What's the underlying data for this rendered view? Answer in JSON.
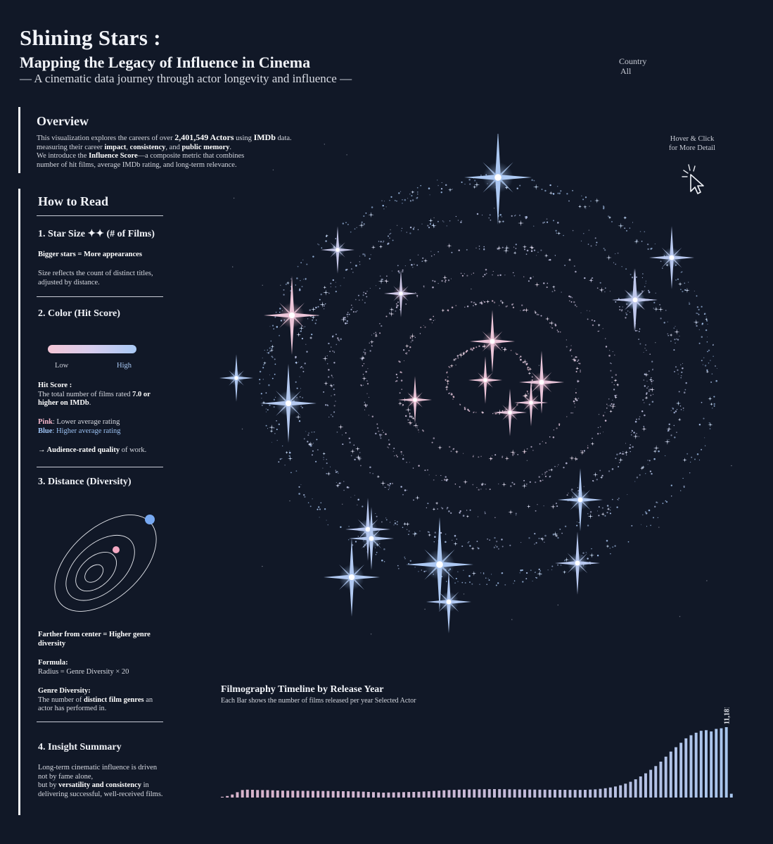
{
  "header": {
    "title": "Shining Stars :",
    "subtitle": "Mapping the Legacy of Influence in Cinema",
    "tagline": "— A cinematic data journey through actor longevity and influence —"
  },
  "filter": {
    "label": "Country",
    "value": "All"
  },
  "overview": {
    "heading": "Overview",
    "p1_a": "This visualization explores the careers of over ",
    "p1_count": "2,401,549 Actors",
    "p1_b": " using ",
    "p1_src": "IMDb",
    "p1_c": " data.",
    "p2_a": "measuring their career ",
    "p2_impact": "impact",
    "p2_b": ", ",
    "p2_consistency": "consistency",
    "p2_c": ", and ",
    "p2_memory": "public memory",
    "p2_d": ".",
    "p3_a": "We introduce the ",
    "p3_score": "Influence Score",
    "p3_b": "—a composite metric that combines",
    "p4": "number of hit films, average IMDb rating, and long-term relevance."
  },
  "howto": {
    "heading": "How to Read",
    "s1_title": "1. Star Size ✦✦ (# of Films)",
    "s1_bold": "Bigger stars = More appearances",
    "s1_text": "Size reflects the count of distinct titles, adjusted by distance.",
    "s2_title": "2. Color (Hit Score)",
    "low": "Low",
    "high": "High",
    "hit_head": "Hit Score :",
    "hit_a": "The total number of films rated ",
    "hit_b": "7.0 or higher on IMDb",
    "hit_c": ".",
    "pink_label": "Pink",
    "pink_text": ": Lower average rating",
    "blue_label": "Blue",
    "blue_text": ": Higher average rating",
    "quality_a": "→ Audience-rated quality",
    "quality_b": " of work.",
    "s3_title": "3. Distance (Diversity)",
    "dist_text": "Farther from center = Higher genre diversity",
    "formula_head": "Formula:",
    "formula": "Radius = Genre Diversity × 20",
    "gd_head": "Genre Diversity:",
    "gd_a": "The number of ",
    "gd_b": "distinct film genres",
    "gd_c": " an actor has performed in.",
    "s4_title": "4. Insight Summary",
    "ins_a": "Long-term cinematic influence is driven not by fame alone,",
    "ins_b": "but by ",
    "ins_c": "versatility and consistency",
    "ins_d": " in delivering successful, well-received films."
  },
  "hint": {
    "line1": "Hover & Click",
    "line2": "for More Detail"
  },
  "colors": {
    "background": "#111827",
    "pink": "#f4b6c9",
    "blue": "#9cc2f3",
    "lavender": "#d3cdee"
  },
  "chart_data": [
    {
      "type": "scatter",
      "title": "",
      "encoding": "polar spiral: radius = genre diversity × 20, star size = # of films, color = hit score (pink low → blue high)",
      "color_scale": {
        "low": "#f5c6d6",
        "high": "#a9c9f5"
      },
      "highlighted_stars": [
        {
          "radius_rank": 1,
          "size": 3,
          "hit": 0.1
        },
        {
          "radius_rank": 1,
          "size": 3,
          "hit": 0.15
        },
        {
          "radius_rank": 1,
          "size": 2,
          "hit": 0.1
        },
        {
          "radius_rank": 1,
          "size": 2,
          "hit": 0.15
        },
        {
          "radius_rank": 1,
          "size": 2,
          "hit": 0.2
        },
        {
          "radius_rank": 3,
          "size": 2,
          "hit": 0.1
        },
        {
          "radius_rank": 4,
          "size": 2,
          "hit": 0.5
        },
        {
          "radius_rank": 5,
          "size": 2,
          "hit": 0.6
        },
        {
          "radius_rank": 5,
          "size": 4,
          "hit": 0.1
        },
        {
          "radius_rank": 5,
          "size": 4,
          "hit": 0.85
        },
        {
          "radius_rank": 5,
          "size": 3,
          "hit": 0.7
        },
        {
          "radius_rank": 6,
          "size": 5,
          "hit": 0.95
        },
        {
          "radius_rank": 6,
          "size": 3,
          "hit": 0.8
        },
        {
          "radius_rank": 6,
          "size": 3,
          "hit": 0.7
        },
        {
          "radius_rank": 6,
          "size": 3,
          "hit": 0.9
        },
        {
          "radius_rank": 6,
          "size": 3,
          "hit": 0.8
        },
        {
          "radius_rank": 6,
          "size": 5,
          "hit": 0.95
        },
        {
          "radius_rank": 6,
          "size": 4,
          "hit": 0.9
        },
        {
          "radius_rank": 6,
          "size": 3,
          "hit": 0.85
        },
        {
          "radius_rank": 6,
          "size": 3,
          "hit": 0.9
        },
        {
          "radius_rank": 6,
          "size": 2,
          "hit": 0.9
        },
        {
          "radius_rank": 6,
          "size": 3,
          "hit": 0.8
        }
      ]
    },
    {
      "type": "bar",
      "title": "Filmography Timeline by Release Year",
      "subtitle": "Each Bar shows the number of films released per year Selected Actor",
      "max_label": "11,181",
      "values": [
        120,
        250,
        480,
        850,
        1200,
        1250,
        1230,
        1200,
        1190,
        1180,
        1150,
        1120,
        1100,
        1090,
        1080,
        1070,
        1060,
        1060,
        1050,
        1050,
        1040,
        1040,
        1030,
        1020,
        1010,
        1000,
        980,
        960,
        940,
        900,
        860,
        820,
        780,
        800,
        820,
        840,
        860,
        880,
        900,
        920,
        960,
        1000,
        1050,
        1100,
        1150,
        1200,
        1220,
        1250,
        1270,
        1290,
        1300,
        1310,
        1320,
        1330,
        1340,
        1330,
        1320,
        1310,
        1300,
        1290,
        1280,
        1270,
        1260,
        1250,
        1250,
        1240,
        1240,
        1230,
        1230,
        1220,
        1220,
        1220,
        1230,
        1260,
        1300,
        1380,
        1480,
        1600,
        1750,
        1950,
        2200,
        2500,
        2900,
        3350,
        3850,
        4400,
        5000,
        5700,
        6500,
        7300,
        8000,
        8700,
        9400,
        9900,
        10300,
        10600,
        10700,
        10500,
        10900,
        11000,
        11181,
        600
      ]
    }
  ]
}
